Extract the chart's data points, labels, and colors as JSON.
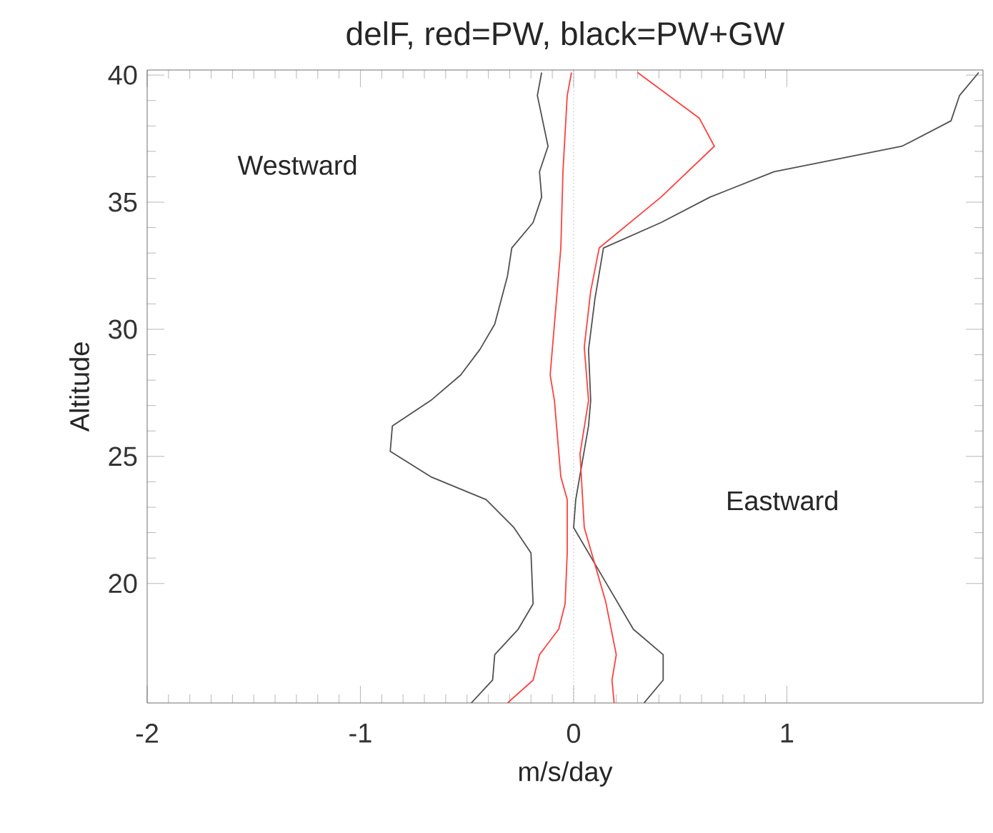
{
  "chart_data": {
    "type": "line",
    "title": "delF, red=PW, black=PW+GW",
    "xlabel": "m/s/day",
    "ylabel": "Altitude",
    "xlim": [
      -2,
      1.92
    ],
    "ylim": [
      15.3,
      40.2
    ],
    "xticks": [
      -2,
      -1,
      0,
      1
    ],
    "yticks": [
      20,
      25,
      30,
      35,
      40
    ],
    "annotations": [
      "Westward",
      "Eastward"
    ],
    "ref_lines": [
      {
        "axis": "x",
        "value": 0,
        "color": "#666666",
        "line_style": "dotted"
      }
    ],
    "grid": false,
    "marker": "none",
    "line_style": "solid",
    "series": [
      {
        "color": "#505050",
        "x": [
          -0.48,
          -0.38,
          -0.37,
          -0.26,
          -0.19,
          -0.2,
          -0.28,
          -0.41,
          -0.67,
          -0.86,
          -0.85,
          -0.67,
          -0.53,
          -0.44,
          -0.37,
          -0.31,
          -0.29,
          -0.19,
          -0.15,
          -0.16,
          -0.12,
          -0.17,
          -0.15
        ],
        "values": [
          15.3,
          16.2,
          17.2,
          18.2,
          19.2,
          21.2,
          22.2,
          23.3,
          24.2,
          25.2,
          26.2,
          27.2,
          28.2,
          29.2,
          30.2,
          32.1,
          33.2,
          34.2,
          35.2,
          36.2,
          37.2,
          39.2,
          40.1
        ]
      },
      {
        "color": "#505050",
        "x": [
          0.33,
          0.42,
          0.42,
          0.28,
          0.14,
          0.0,
          0.01,
          0.07,
          0.08,
          0.07,
          0.1,
          0.14,
          0.41,
          0.64,
          0.94,
          1.54,
          1.77,
          1.81,
          1.9
        ],
        "values": [
          15.3,
          16.2,
          17.2,
          18.2,
          20.2,
          22.2,
          23.3,
          26.2,
          27.2,
          29.2,
          31.2,
          33.2,
          34.2,
          35.2,
          36.2,
          37.2,
          38.2,
          39.2,
          40.1
        ]
      },
      {
        "color": "#ff4040",
        "x": [
          -0.31,
          -0.19,
          -0.16,
          -0.07,
          -0.04,
          -0.03,
          -0.03,
          -0.06,
          -0.09,
          -0.11,
          -0.09,
          -0.06,
          -0.05,
          -0.03,
          -0.01
        ],
        "values": [
          15.3,
          16.2,
          17.2,
          18.2,
          19.2,
          21.2,
          23.3,
          24.2,
          27.2,
          28.2,
          30.2,
          33.2,
          36.2,
          39.2,
          40.1
        ]
      },
      {
        "color": "#ff4040",
        "x": [
          0.19,
          0.18,
          0.2,
          0.15,
          0.05,
          0.03,
          0.07,
          0.05,
          0.08,
          0.12,
          0.41,
          0.66,
          0.59,
          0.3
        ],
        "values": [
          15.3,
          16.2,
          17.2,
          19.3,
          22.2,
          25.1,
          27.2,
          29.3,
          31.5,
          33.2,
          35.2,
          37.2,
          38.3,
          40.1
        ]
      }
    ]
  }
}
